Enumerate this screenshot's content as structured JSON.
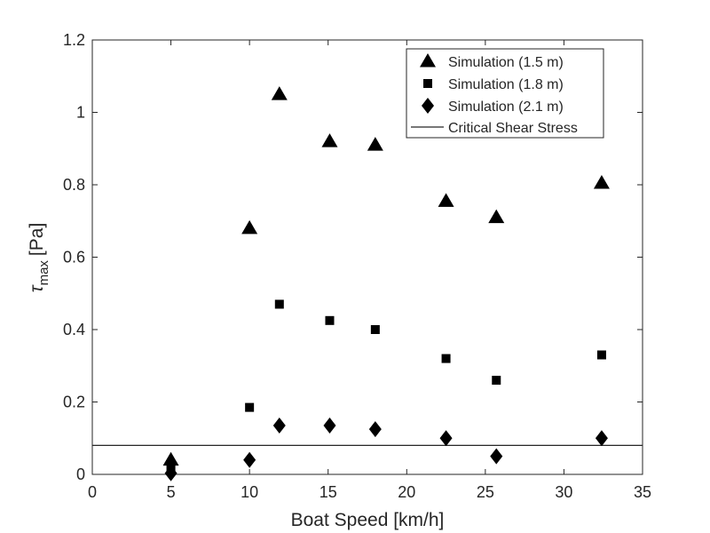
{
  "chart_data": {
    "type": "scatter",
    "title": "",
    "xlabel": "Boat Speed [km/h]",
    "ylabel": {
      "symbol": "τ",
      "subscript": "max",
      "unit": "[Pa]"
    },
    "xlim": [
      0,
      35
    ],
    "ylim": [
      0,
      1.2
    ],
    "xticks": [
      "0",
      "5",
      "10",
      "15",
      "20",
      "25",
      "30",
      "35"
    ],
    "yticks": [
      "0",
      "0.2",
      "0.4",
      "0.6",
      "0.8",
      "1",
      "1.2"
    ],
    "grid": false,
    "legend_position": "top-right",
    "series": [
      {
        "name": "Simulation (1.5 m)",
        "marker": "triangle",
        "color": "#000000",
        "points": [
          {
            "x": 5,
            "y": 0.04
          },
          {
            "x": 10,
            "y": 0.68
          },
          {
            "x": 11.9,
            "y": 1.05
          },
          {
            "x": 15.1,
            "y": 0.92
          },
          {
            "x": 18,
            "y": 0.91
          },
          {
            "x": 22.5,
            "y": 0.755
          },
          {
            "x": 25.7,
            "y": 0.71
          },
          {
            "x": 32.4,
            "y": 0.805
          }
        ]
      },
      {
        "name": "Simulation (1.8 m)",
        "marker": "square",
        "color": "#000000",
        "points": [
          {
            "x": 5,
            "y": 0.015
          },
          {
            "x": 10,
            "y": 0.185
          },
          {
            "x": 11.9,
            "y": 0.47
          },
          {
            "x": 15.1,
            "y": 0.425
          },
          {
            "x": 18,
            "y": 0.4
          },
          {
            "x": 22.5,
            "y": 0.32
          },
          {
            "x": 25.7,
            "y": 0.26
          },
          {
            "x": 32.4,
            "y": 0.33
          }
        ]
      },
      {
        "name": "Simulation (2.1 m)",
        "marker": "diamond",
        "color": "#000000",
        "points": [
          {
            "x": 5,
            "y": 0.003
          },
          {
            "x": 10,
            "y": 0.04
          },
          {
            "x": 11.9,
            "y": 0.135
          },
          {
            "x": 15.1,
            "y": 0.135
          },
          {
            "x": 18,
            "y": 0.125
          },
          {
            "x": 22.5,
            "y": 0.1
          },
          {
            "x": 25.7,
            "y": 0.05
          },
          {
            "x": 32.4,
            "y": 0.1
          }
        ]
      }
    ],
    "reference_lines": [
      {
        "name": "Critical Shear Stress",
        "orientation": "horizontal",
        "y": 0.08,
        "color": "#262626"
      }
    ]
  }
}
